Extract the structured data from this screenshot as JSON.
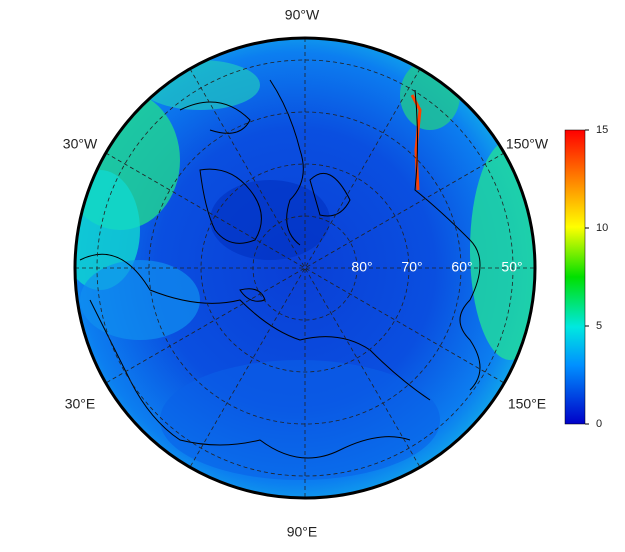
{
  "map": {
    "lon_labels": [
      "90°W",
      "150°W",
      "30°W",
      "30°E",
      "150°E",
      "90°E"
    ],
    "lat_labels": [
      "80°",
      "70°",
      "60°",
      "50°"
    ],
    "colorbar": {
      "lim": [
        0,
        15
      ],
      "ticks": [
        0,
        5,
        10,
        15
      ]
    }
  }
}
